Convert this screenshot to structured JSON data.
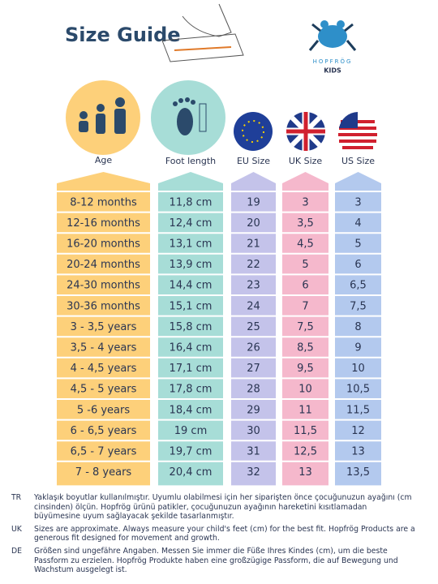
{
  "header": {
    "title": "Size Guide",
    "brand": "HOPFRÖG",
    "brand_sub": "KIDS"
  },
  "table": {
    "columns": [
      "Age",
      "Foot length",
      "EU Size",
      "UK Size",
      "US Size"
    ],
    "rows": [
      [
        "8-12 months",
        "11,8 cm",
        "19",
        "3",
        "3"
      ],
      [
        "12-16 months",
        "12,4 cm",
        "20",
        "3,5",
        "4"
      ],
      [
        "16-20 months",
        "13,1 cm",
        "21",
        "4,5",
        "5"
      ],
      [
        "20-24 months",
        "13,9 cm",
        "22",
        "5",
        "6"
      ],
      [
        "24-30 months",
        "14,4 cm",
        "23",
        "6",
        "6,5"
      ],
      [
        "30-36 months",
        "15,1 cm",
        "24",
        "7",
        "7,5"
      ],
      [
        "3 - 3,5 years",
        "15,8 cm",
        "25",
        "7,5",
        "8"
      ],
      [
        "3,5 - 4 years",
        "16,4 cm",
        "26",
        "8,5",
        "9"
      ],
      [
        "4 - 4,5 years",
        "17,1 cm",
        "27",
        "9,5",
        "10"
      ],
      [
        "4,5 - 5 years",
        "17,8 cm",
        "28",
        "10",
        "10,5"
      ],
      [
        "5 -6 years",
        "18,4 cm",
        "29",
        "11",
        "11,5"
      ],
      [
        "6 - 6,5 years",
        "19 cm",
        "30",
        "11,5",
        "12"
      ],
      [
        "6,5 - 7 years",
        "19,7 cm",
        "31",
        "12,5",
        "13"
      ],
      [
        "7 - 8 years",
        "20,4 cm",
        "32",
        "13",
        "13,5"
      ]
    ]
  },
  "notes": [
    {
      "code": "TR",
      "text": "Yaklaşık boyutlar kullanılmıştır. Uyumlu olabilmesi için her siparişten önce çocuğunuzun ayağını (cm cinsinden) ölçün. Hopfrög ürünü patikler, çocuğunuzun ayağının hareketini kısıtlamadan büyümesine uyum sağlayacak şekilde tasarlanmıştır."
    },
    {
      "code": "UK",
      "text": "Sizes are approximate. Always measure your child's feet (cm) for the best fit. Hopfrög Products are a generous fit designed for movement and growth."
    },
    {
      "code": "DE",
      "text": "Größen sind ungefähre Angaben. Messen Sie immer die Füße Ihres Kindes (cm), um die beste Passform zu erzielen. Hopfrög Produkte haben eine großzügige Passform, die auf Bewegung und Wachstum ausgelegt ist."
    }
  ]
}
